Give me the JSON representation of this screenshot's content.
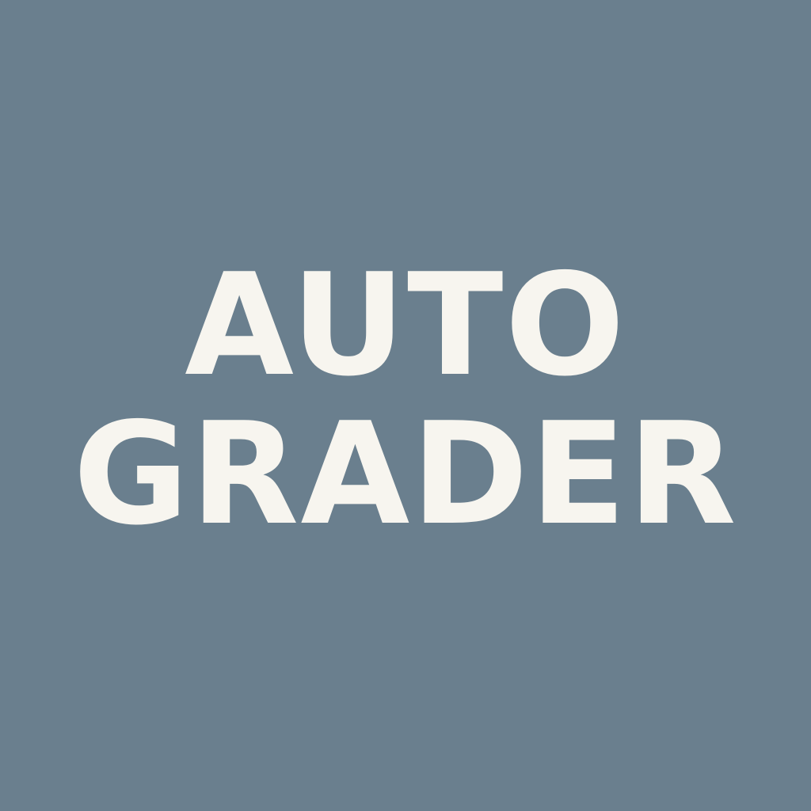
{
  "background_color": "#6a7f8e",
  "text_color": "#f7f5ef",
  "title": {
    "line_1": "AUTO",
    "line_2": "GRADER"
  }
}
